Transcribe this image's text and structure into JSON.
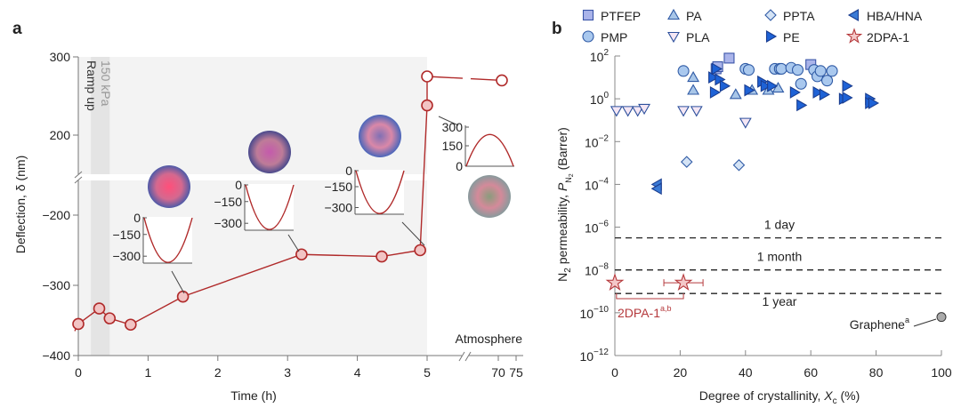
{
  "chart_data": [
    {
      "panel": "a",
      "type": "line",
      "xlabel": "Time (h)",
      "ylabel": "Deflection, δ (nm)",
      "xticks": [
        "0",
        "1",
        "2",
        "3",
        "4",
        "5",
        "70",
        "75"
      ],
      "xtick_values": [
        0,
        1,
        2,
        3,
        4,
        5,
        70,
        75
      ],
      "yticks": [
        "300",
        "200",
        "−200",
        "−300",
        "−400"
      ],
      "ytick_values": [
        300,
        200,
        -200,
        -300,
        -400
      ],
      "axis_break_y": [
        -150,
        150
      ],
      "axis_break_x": [
        5.5,
        70
      ],
      "shaded_region_h": [
        0,
        5
      ],
      "ramp_band_h": [
        0.18,
        0.45
      ],
      "ramp_label": "Ramp up",
      "pressure_label": "150 kPa",
      "atmosphere_label": "Atmosphere",
      "points": [
        {
          "t": 0,
          "d": -355,
          "open": false
        },
        {
          "t": 0.3,
          "d": -333,
          "open": false
        },
        {
          "t": 0.45,
          "d": -347,
          "open": false
        },
        {
          "t": 0.75,
          "d": -356,
          "open": false
        },
        {
          "t": 1.5,
          "d": -316,
          "open": false
        },
        {
          "t": 3.2,
          "d": -256,
          "open": false
        },
        {
          "t": 4.35,
          "d": -259,
          "open": false
        },
        {
          "t": 4.9,
          "d": -250,
          "open": false
        },
        {
          "t": 5.0,
          "d": 238,
          "open": false
        },
        {
          "t": 5.0,
          "d": 275,
          "open": true
        },
        {
          "t": 71,
          "d": 270,
          "open": true
        }
      ],
      "insets": [
        {
          "ticks": [
            "0",
            "−150",
            "−300"
          ],
          "shape": "down"
        },
        {
          "ticks": [
            "0",
            "−150",
            "−300"
          ],
          "shape": "down"
        },
        {
          "ticks": [
            "0",
            "−150",
            "−300"
          ],
          "shape": "down"
        },
        {
          "ticks": [
            "300",
            "150",
            "0"
          ],
          "shape": "up"
        }
      ],
      "colors": {
        "line": "#b02a2a",
        "marker_fill": "#f2c4c4",
        "shade": "#f3f3f3",
        "ramp": "#e4e4e4"
      }
    },
    {
      "panel": "b",
      "type": "scatter",
      "xlabel_parts": [
        "Degree of crystallinity, ",
        "X",
        "c",
        " (%)"
      ],
      "ylabel_parts": [
        "N",
        "2",
        " permeability, ",
        "P",
        "N",
        "2",
        " (Barrer)"
      ],
      "xticks": [
        "0",
        "20",
        "40",
        "60",
        "80",
        "100"
      ],
      "xlim": [
        0,
        100
      ],
      "ytick_base": "10",
      "ytick_exponents": [
        "2",
        "0",
        "−2",
        "−4",
        "−6",
        "−8",
        "−10",
        "−12"
      ],
      "ylim_log10": [
        -12,
        2
      ],
      "yscale": "log",
      "legend_placement": "top",
      "reference_lines": [
        {
          "label": "1 day",
          "log10": -6.5
        },
        {
          "label": "1 month",
          "log10": -8.0
        },
        {
          "label": "1 year",
          "log10": -9.1
        }
      ],
      "series": [
        {
          "name": "PTFEP",
          "marker": "square",
          "fill": "#aab4ea",
          "stroke": "#3a55a8",
          "points": [
            [
              31,
              1.4
            ],
            [
              31.5,
              1.5
            ],
            [
              35,
              1.9
            ],
            [
              60,
              1.6
            ]
          ]
        },
        {
          "name": "PMP",
          "marker": "circle",
          "fill": "#a9c8ee",
          "stroke": "#2f5aa5",
          "points": [
            [
              21,
              1.3
            ],
            [
              40,
              1.4
            ],
            [
              41,
              1.35
            ],
            [
              49,
              1.4
            ],
            [
              50.5,
              1.4
            ],
            [
              51,
              1.4
            ],
            [
              54,
              1.45
            ],
            [
              56,
              1.35
            ],
            [
              57,
              0.7
            ],
            [
              61,
              1.35
            ],
            [
              62,
              1.05
            ],
            [
              63,
              1.3
            ],
            [
              65,
              0.85
            ],
            [
              66.5,
              1.3
            ]
          ]
        },
        {
          "name": "PA",
          "marker": "triangle-up",
          "fill": "#a8c6e8",
          "stroke": "#2f5aa5",
          "points": [
            [
              24,
              1.0
            ],
            [
              24,
              0.4
            ],
            [
              37,
              0.2
            ],
            [
              42,
              0.4
            ],
            [
              47,
              0.4
            ],
            [
              50,
              0.5
            ]
          ]
        },
        {
          "name": "PLA",
          "marker": "triangle-down",
          "fill": "#f4e6f4",
          "stroke": "#2c4f9c",
          "points": [
            [
              0.5,
              -0.55
            ],
            [
              4,
              -0.55
            ],
            [
              7,
              -0.55
            ],
            [
              9,
              -0.45
            ],
            [
              21,
              -0.55
            ],
            [
              25,
              -0.55
            ],
            [
              40,
              -1.1
            ]
          ]
        },
        {
          "name": "PPTA",
          "marker": "diamond",
          "fill": "#d4e3f5",
          "stroke": "#2f5aa5",
          "points": [
            [
              22,
              -2.95
            ],
            [
              38,
              -3.1
            ]
          ]
        },
        {
          "name": "HBA/HNA",
          "marker": "triangle-left",
          "fill": "#3b7bd6",
          "stroke": "#1a3d8f",
          "points": [
            [
              13,
              -4.0
            ],
            [
              13,
              -4.2
            ]
          ]
        },
        {
          "name": "PE",
          "marker": "triangle-right",
          "fill": "#1e62d6",
          "stroke": "#1a3d8f",
          "points": [
            [
              30,
              1.0
            ],
            [
              30.5,
              0.3
            ],
            [
              31,
              1.4
            ],
            [
              32,
              0.9
            ],
            [
              33.5,
              0.6
            ],
            [
              41,
              0.4
            ],
            [
              45,
              0.8
            ],
            [
              46,
              0.6
            ],
            [
              48,
              0.6
            ],
            [
              55,
              0.3
            ],
            [
              57,
              -0.3
            ],
            [
              62,
              0.3
            ],
            [
              64,
              0.2
            ],
            [
              70,
              0.0
            ],
            [
              71,
              0.6
            ],
            [
              71,
              0.05
            ],
            [
              78,
              0.0
            ],
            [
              78,
              -0.2
            ],
            [
              79,
              -0.2
            ]
          ]
        },
        {
          "name": "2DPA-1",
          "marker": "star",
          "fill": "#f4c8c8",
          "stroke": "#b5393c",
          "points": [
            [
              0,
              -8.6
            ],
            [
              21,
              -8.6
            ]
          ],
          "xerr": [
            [
              0,
              0
            ],
            [
              15,
              27
            ]
          ]
        }
      ],
      "annotations": [
        {
          "text": "2DPA-1",
          "sup": "a,b",
          "color": "#b5393c"
        },
        {
          "text": "Graphene",
          "sup": "a",
          "x": 100,
          "log10": -10.2,
          "color": "#222"
        }
      ]
    }
  ],
  "panel_labels": [
    "a",
    "b"
  ]
}
